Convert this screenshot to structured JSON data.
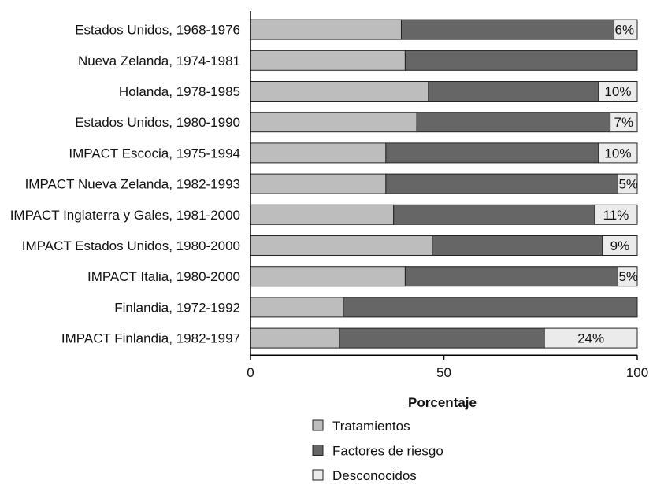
{
  "chart_data": {
    "type": "bar",
    "orientation": "horizontal",
    "stacked": true,
    "categories": [
      "Estados Unidos, 1968-1976",
      "Nueva Zelanda, 1974-1981",
      "Holanda, 1978-1985",
      "Estados Unidos, 1980-1990",
      "IMPACT Escocia, 1975-1994",
      "IMPACT Nueva Zelanda, 1982-1993",
      "IMPACT Inglaterra y Gales, 1981-2000",
      "IMPACT Estados Unidos, 1980-2000",
      "IMPACT Italia, 1980-2000",
      "Finlandia, 1972-1992",
      "IMPACT Finlandia, 1982-1997"
    ],
    "series": [
      {
        "name": "Tratamientos",
        "color": "#bdbdbd",
        "values": [
          39,
          40,
          46,
          43,
          35,
          35,
          37,
          47,
          40,
          24,
          23
        ]
      },
      {
        "name": "Factores de riesgo",
        "color": "#666666",
        "values": [
          55,
          60,
          44,
          50,
          55,
          60,
          52,
          44,
          55,
          76,
          53
        ]
      },
      {
        "name": "Desconocidos",
        "color": "#ebebeb",
        "values": [
          6,
          0,
          10,
          7,
          10,
          5,
          11,
          9,
          5,
          0,
          24
        ]
      }
    ],
    "data_labels": [
      "6%",
      "",
      "10%",
      "7%",
      "10%",
      "5%",
      "11%",
      "9%",
      "5%",
      "",
      "24%"
    ],
    "xticks": [
      "0",
      "50",
      "100"
    ],
    "xlim": [
      0,
      100
    ],
    "xlabel": "Porcentaje",
    "ylabel": "",
    "title": "",
    "grid": false,
    "legend_position": "bottom"
  }
}
